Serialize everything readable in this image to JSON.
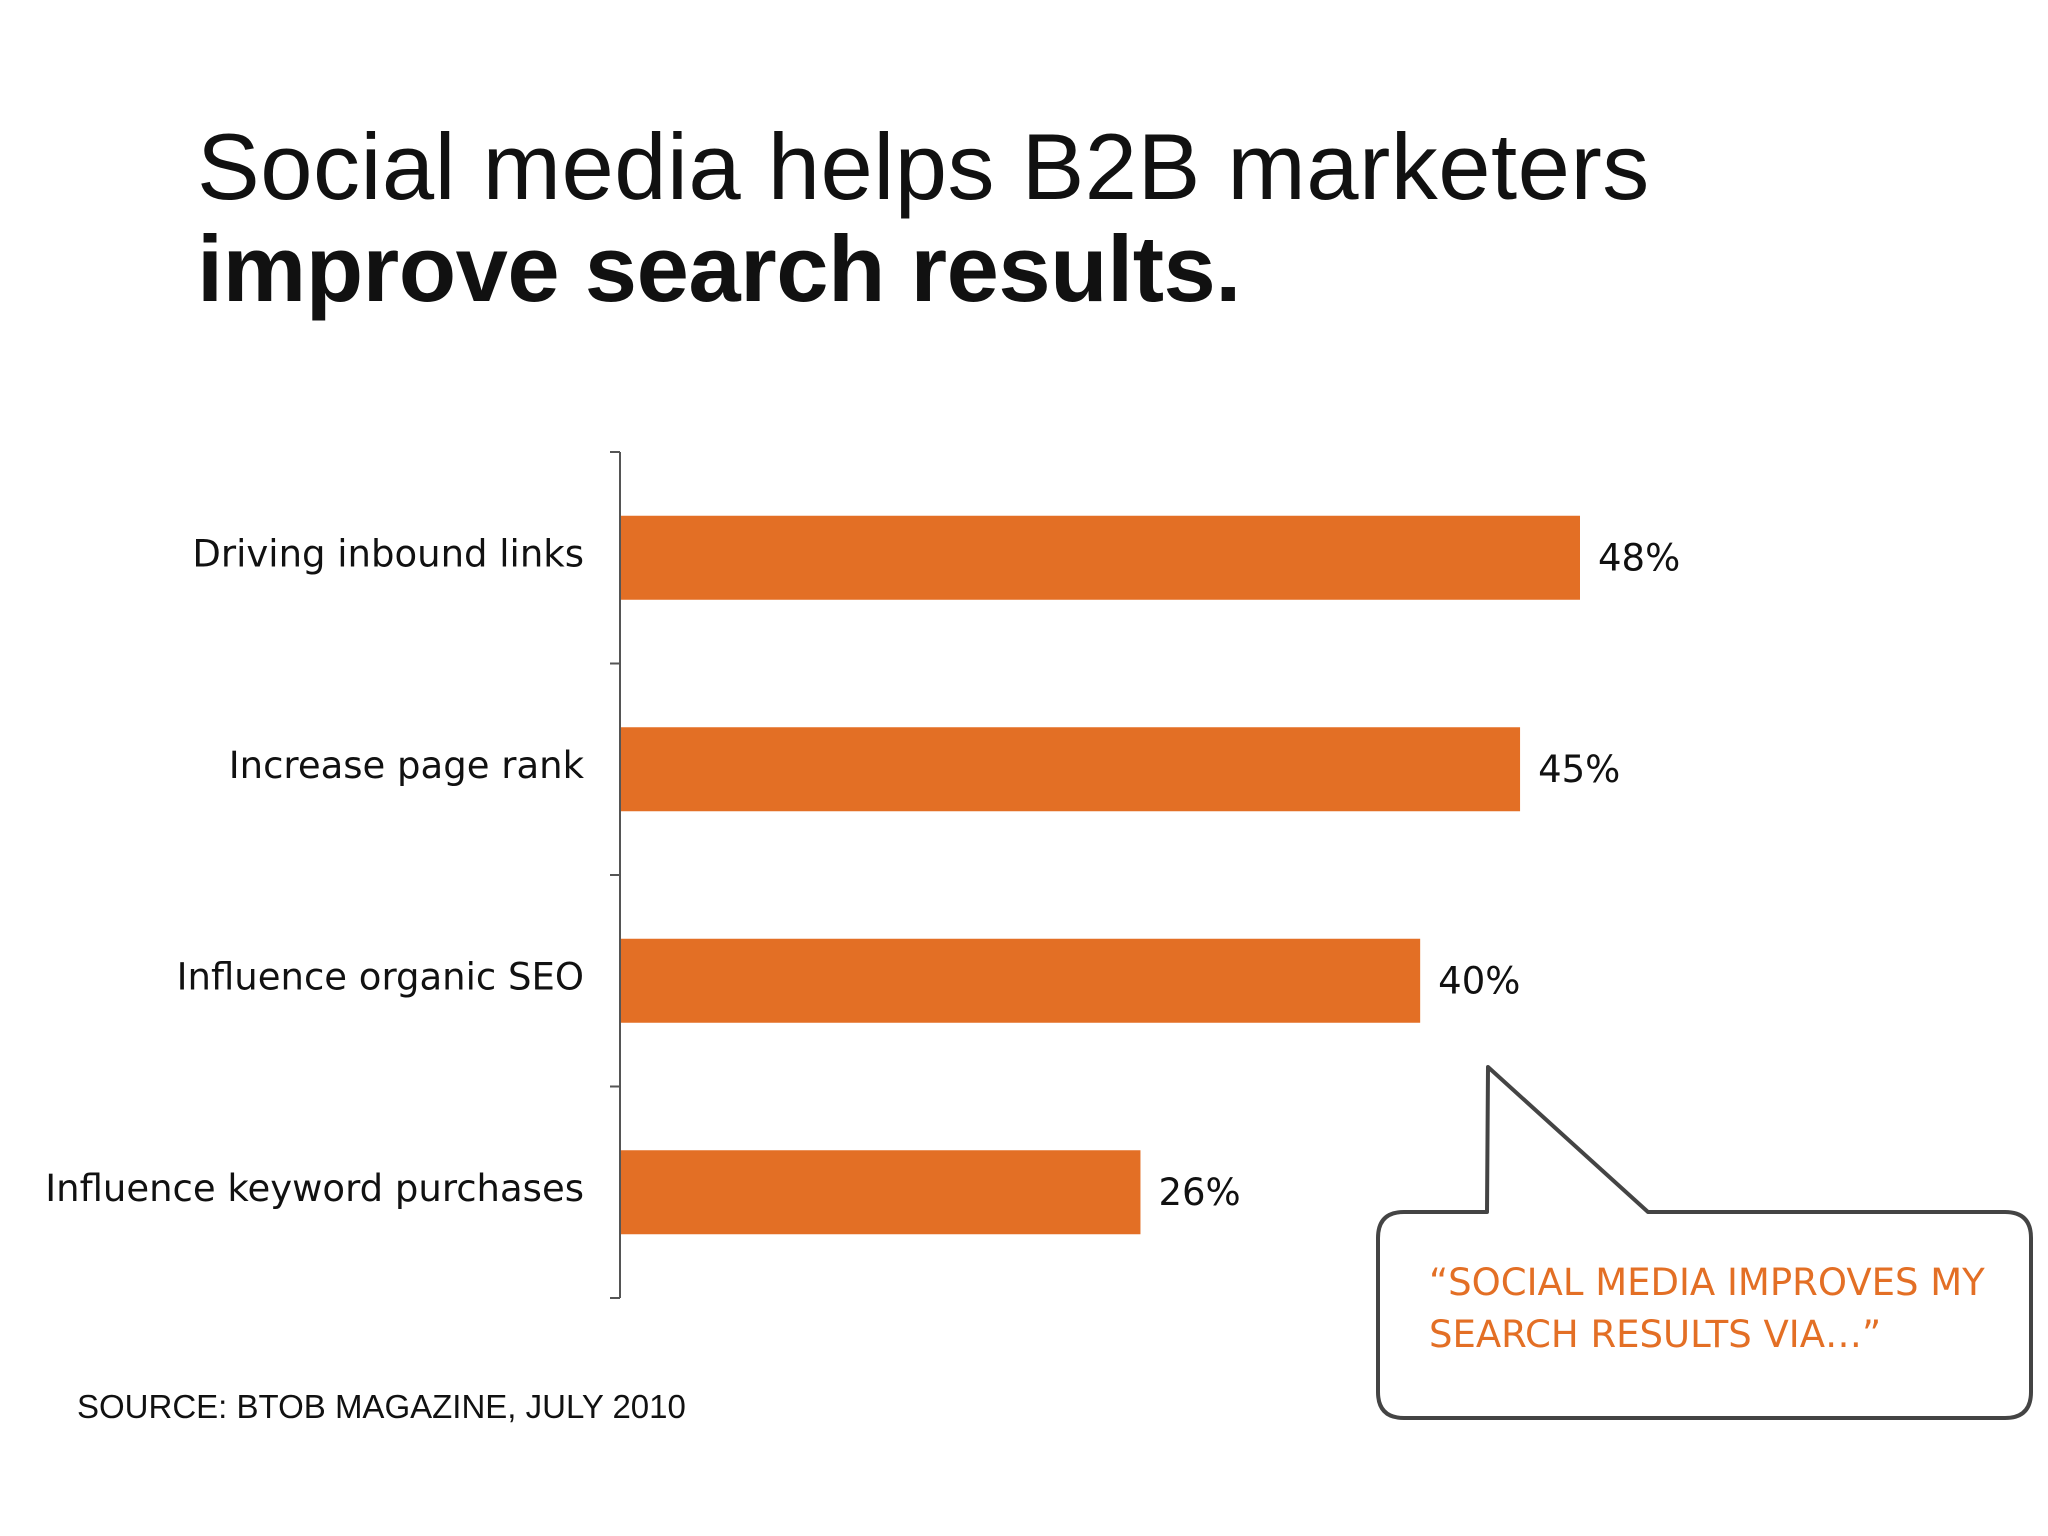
{
  "title": {
    "line1": "Social media helps B2B marketers",
    "line2": "improve search results."
  },
  "source": "SOURCE: BTOB MAGAZINE, JULY 2010",
  "callout": {
    "line1": "“SOCIAL MEDIA IMPROVES MY",
    "line2": "SEARCH RESULTS VIA…”"
  },
  "colors": {
    "bar": "#E36F25",
    "callout_text": "#E36F25",
    "axis": "#555555",
    "callout_border": "#444444"
  },
  "chart_data": {
    "type": "bar",
    "orientation": "horizontal",
    "categories": [
      "Driving inbound links",
      "Increase page rank",
      "Influence organic SEO",
      "Influence keyword purchases"
    ],
    "values": [
      48,
      45,
      40,
      26
    ],
    "value_labels": [
      "48%",
      "45%",
      "40%",
      "26%"
    ],
    "unit": "%",
    "xlim": [
      0,
      100
    ],
    "grid": false
  }
}
